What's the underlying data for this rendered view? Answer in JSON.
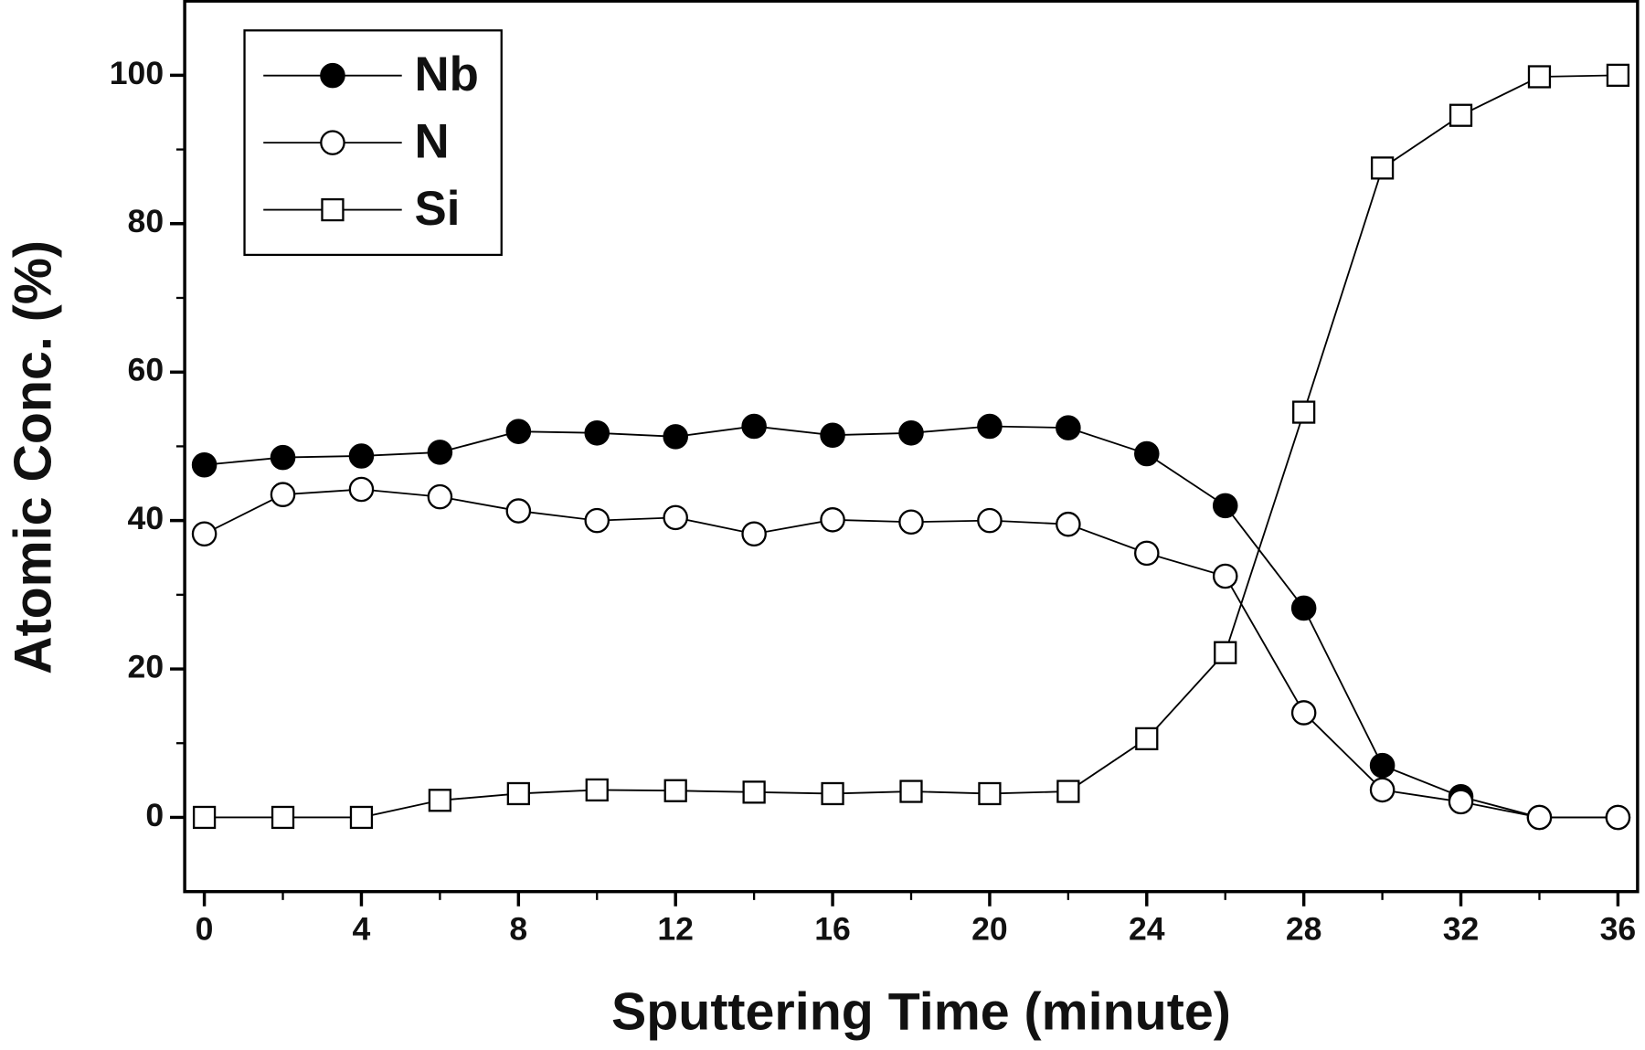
{
  "chart_data": {
    "type": "line",
    "x_label": "Sputtering Time (minute)",
    "y_label": "Atomic Conc. (%)",
    "x": [
      0,
      2,
      4,
      6,
      8,
      10,
      12,
      14,
      16,
      18,
      20,
      22,
      24,
      26,
      28,
      30,
      32,
      34,
      36
    ],
    "series": [
      {
        "name": "Nb",
        "color": "#000000",
        "marker": "filled-circle",
        "values": [
          47.5,
          48.5,
          48.7,
          49.2,
          52,
          51.8,
          51.3,
          52.7,
          51.5,
          51.8,
          52.7,
          52.5,
          49,
          42,
          28.2,
          7,
          2.8,
          0,
          0
        ]
      },
      {
        "name": "N",
        "color": "#000000",
        "marker": "open-circle",
        "values": [
          38.2,
          43.5,
          44.2,
          43.2,
          41.3,
          40,
          40.4,
          38.2,
          40.1,
          39.8,
          40,
          39.5,
          35.6,
          32.5,
          14.1,
          3.7,
          2.1,
          0,
          0
        ]
      },
      {
        "name": "Si",
        "color": "#000000",
        "marker": "open-square",
        "values": [
          0,
          0,
          0,
          2.3,
          3.2,
          3.7,
          3.6,
          3.4,
          3.2,
          3.5,
          3.2,
          3.5,
          10.6,
          22.2,
          54.6,
          87.5,
          94.6,
          99.8,
          100
        ]
      }
    ],
    "xlim": [
      -0.5,
      36.5
    ],
    "xticks": [
      0,
      4,
      8,
      12,
      16,
      20,
      24,
      28,
      32,
      36
    ],
    "ylim": [
      -10,
      110
    ],
    "yticks": [
      0,
      20,
      40,
      60,
      80,
      100
    ],
    "legend": "upper-left",
    "grid": false
  }
}
